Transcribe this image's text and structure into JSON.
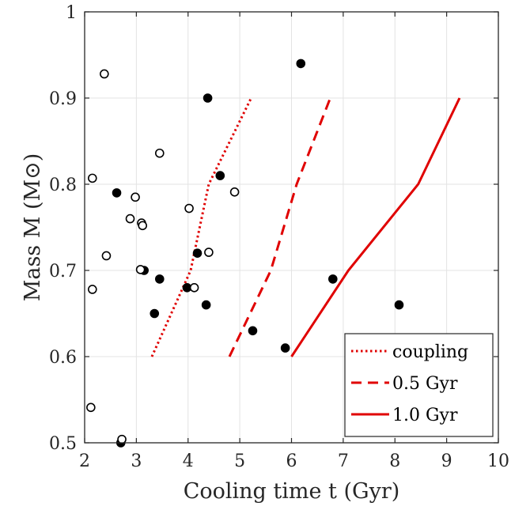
{
  "chart_data": {
    "type": "scatter",
    "xlabel": "Cooling time t (Gyr)",
    "ylabel": "Mass M (M⊙)",
    "xlim": [
      2,
      10
    ],
    "ylim": [
      0.5,
      1
    ],
    "x_ticks": [
      "2",
      "3",
      "4",
      "5",
      "6",
      "7",
      "8",
      "9",
      "10"
    ],
    "y_ticks": [
      "0.5",
      "0.6",
      "0.7",
      "0.8",
      "0.9",
      "1"
    ],
    "grid": true,
    "legend_position": "bottom-right",
    "colors": {
      "curves": "#e00000",
      "points": "#000000",
      "grid": "#e3e3e3",
      "axis": "#262626"
    },
    "series": [
      {
        "kind": "points-filled",
        "x": [
          2.62,
          4.38,
          6.18,
          4.62,
          4.18,
          3.15,
          3.45,
          3.98,
          3.35,
          4.35,
          5.25,
          5.88,
          6.8,
          8.08,
          2.7
        ],
        "y": [
          0.79,
          0.9,
          0.94,
          0.81,
          0.72,
          0.7,
          0.69,
          0.68,
          0.65,
          0.66,
          0.63,
          0.61,
          0.69,
          0.66,
          0.5
        ]
      },
      {
        "kind": "points-open",
        "x": [
          2.38,
          2.15,
          3.45,
          2.98,
          4.02,
          4.9,
          2.88,
          3.1,
          3.12,
          2.42,
          3.08,
          4.4,
          4.12,
          2.15,
          2.12,
          2.72
        ],
        "y": [
          0.928,
          0.807,
          0.836,
          0.785,
          0.772,
          0.791,
          0.76,
          0.755,
          0.752,
          0.717,
          0.701,
          0.721,
          0.68,
          0.678,
          0.541,
          0.504
        ]
      },
      {
        "name": "coupling",
        "kind": "line-dotted",
        "x": [
          3.3,
          4.05,
          4.4,
          5.22
        ],
        "y": [
          0.6,
          0.7,
          0.8,
          0.9
        ]
      },
      {
        "name": "0.5 Gyr",
        "kind": "line-dashed",
        "x": [
          4.8,
          5.6,
          6.1,
          6.75
        ],
        "y": [
          0.6,
          0.7,
          0.8,
          0.9
        ]
      },
      {
        "name": "1.0 Gyr",
        "kind": "line-solid",
        "x": [
          6.0,
          7.1,
          8.45,
          9.25
        ],
        "y": [
          0.6,
          0.7,
          0.8,
          0.9
        ]
      }
    ],
    "legend": [
      {
        "label": "coupling",
        "style": "dotted"
      },
      {
        "label": "0.5 Gyr",
        "style": "dashed"
      },
      {
        "label": "1.0 Gyr",
        "style": "solid"
      }
    ]
  }
}
